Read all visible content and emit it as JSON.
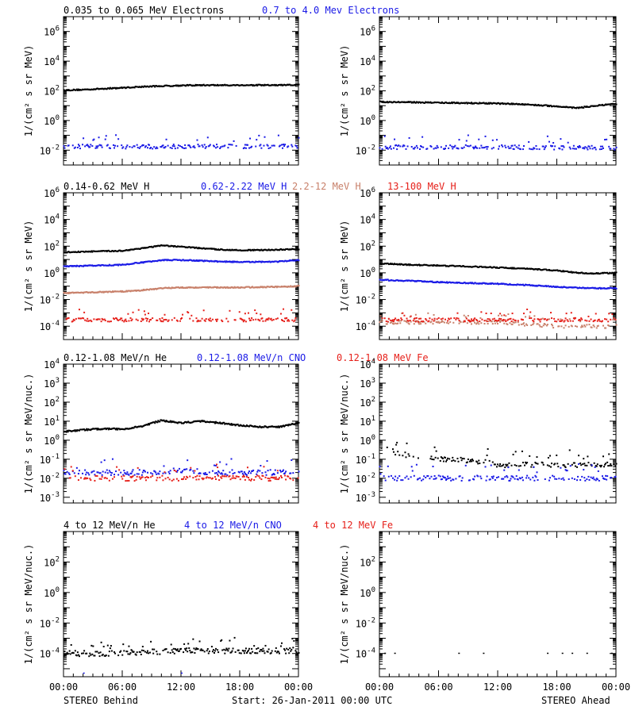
{
  "colors": {
    "black": "#000000",
    "blue": "#1a1ae6",
    "salmon": "#c8806a",
    "red": "#e6201a"
  },
  "footer": {
    "left": "STEREO Behind",
    "center": "Start: 26-Jan-2011 00:00 UTC",
    "right": "STEREO Ahead"
  },
  "x_ticks": [
    "00:00",
    "06:00",
    "12:00",
    "18:00",
    "00:00"
  ],
  "chart_data": [
    {
      "type": "scatter",
      "panel": "electrons-behind",
      "log_y": true,
      "xlim_hours": [
        0,
        24
      ],
      "ylim": [
        0.001,
        10000000
      ],
      "ylabel": "1/(cm² s sr MeV)",
      "y_ticks": [
        {
          "exp": -2,
          "label": "-2"
        },
        {
          "exp": 0,
          "label": "0"
        },
        {
          "exp": 2,
          "label": "2"
        },
        {
          "exp": 4,
          "label": "4"
        },
        {
          "exp": 6,
          "label": "6"
        }
      ],
      "series": [
        {
          "name": "0.035 to 0.065 MeV Electrons",
          "color": "black",
          "style": "dense",
          "x": [
            0,
            2,
            4,
            6,
            8,
            10,
            12,
            14,
            16,
            18,
            20,
            22,
            24
          ],
          "y": [
            110,
            120,
            140,
            160,
            190,
            210,
            230,
            240,
            240,
            240,
            240,
            240,
            250
          ]
        },
        {
          "name": "0.7 to 4.0 Mev Electrons",
          "color": "blue",
          "style": "scatter",
          "x": [
            0,
            4,
            8,
            12,
            16,
            20,
            24
          ],
          "y": [
            0.018,
            0.018,
            0.017,
            0.018,
            0.018,
            0.018,
            0.018
          ]
        }
      ]
    },
    {
      "type": "scatter",
      "panel": "electrons-ahead",
      "log_y": true,
      "xlim_hours": [
        0,
        24
      ],
      "ylim": [
        0.001,
        10000000
      ],
      "ylabel": "1/(cm² s sr MeV)",
      "y_ticks": [
        {
          "exp": -2,
          "label": "-2"
        },
        {
          "exp": 0,
          "label": "0"
        },
        {
          "exp": 2,
          "label": "2"
        },
        {
          "exp": 4,
          "label": "4"
        },
        {
          "exp": 6,
          "label": "6"
        }
      ],
      "series": [
        {
          "name": "",
          "color": "black",
          "style": "dense",
          "x": [
            0,
            3,
            6,
            9,
            12,
            15,
            18,
            20,
            22,
            24
          ],
          "y": [
            18,
            17,
            16,
            15,
            14,
            12,
            9,
            7,
            10,
            13
          ]
        },
        {
          "name": "",
          "color": "blue",
          "style": "scatter",
          "x": [
            0,
            6,
            12,
            18,
            24
          ],
          "y": [
            0.016,
            0.016,
            0.016,
            0.015,
            0.014
          ]
        }
      ]
    },
    {
      "type": "scatter",
      "panel": "protons-behind",
      "log_y": true,
      "xlim_hours": [
        0,
        24
      ],
      "ylim": [
        1e-05,
        1000000
      ],
      "ylabel": "1/(cm² s sr MeV)",
      "y_ticks": [
        {
          "exp": -4,
          "label": "-4"
        },
        {
          "exp": -2,
          "label": "-2"
        },
        {
          "exp": 0,
          "label": "0"
        },
        {
          "exp": 2,
          "label": "2"
        },
        {
          "exp": 4,
          "label": "4"
        },
        {
          "exp": 6,
          "label": "6"
        }
      ],
      "series": [
        {
          "name": "0.14-0.62 MeV H",
          "color": "black",
          "style": "dense",
          "x": [
            0,
            3,
            6,
            8,
            10,
            12,
            14,
            16,
            18,
            20,
            22,
            24
          ],
          "y": [
            35,
            40,
            45,
            70,
            110,
            90,
            70,
            55,
            50,
            50,
            55,
            60
          ]
        },
        {
          "name": "0.62-2.22 MeV H",
          "color": "blue",
          "style": "dense",
          "x": [
            0,
            3,
            6,
            8,
            10,
            12,
            14,
            16,
            18,
            20,
            22,
            24
          ],
          "y": [
            3,
            3.5,
            4,
            6,
            9,
            9,
            8,
            7,
            6.5,
            6.5,
            7,
            9
          ]
        },
        {
          "name": "2.2-12 MeV H",
          "color": "salmon",
          "style": "dense",
          "x": [
            0,
            3,
            6,
            8,
            10,
            12,
            14,
            16,
            18,
            20,
            22,
            24
          ],
          "y": [
            0.03,
            0.035,
            0.04,
            0.05,
            0.07,
            0.08,
            0.08,
            0.08,
            0.08,
            0.085,
            0.09,
            0.1
          ]
        },
        {
          "name": "13-100 MeV H",
          "color": "red",
          "style": "scatter",
          "x": [
            0,
            6,
            12,
            18,
            24
          ],
          "y": [
            0.0003,
            0.0003,
            0.0003,
            0.0003,
            0.0003
          ]
        }
      ]
    },
    {
      "type": "scatter",
      "panel": "protons-ahead",
      "log_y": true,
      "xlim_hours": [
        0,
        24
      ],
      "ylim": [
        1e-05,
        1000000
      ],
      "ylabel": "1/(cm² s sr MeV)",
      "y_ticks": [
        {
          "exp": -4,
          "label": "-4"
        },
        {
          "exp": -2,
          "label": "-2"
        },
        {
          "exp": 0,
          "label": "0"
        },
        {
          "exp": 2,
          "label": "2"
        },
        {
          "exp": 4,
          "label": "4"
        },
        {
          "exp": 6,
          "label": "6"
        }
      ],
      "series": [
        {
          "name": "",
          "color": "black",
          "style": "dense",
          "x": [
            0,
            3,
            6,
            9,
            12,
            15,
            18,
            20,
            22,
            24
          ],
          "y": [
            5,
            4,
            3.5,
            3,
            2.5,
            2,
            1.5,
            1,
            0.9,
            1
          ]
        },
        {
          "name": "",
          "color": "blue",
          "style": "dense",
          "x": [
            0,
            3,
            6,
            9,
            12,
            15,
            18,
            21,
            24
          ],
          "y": [
            0.3,
            0.25,
            0.2,
            0.17,
            0.15,
            0.12,
            0.09,
            0.07,
            0.07
          ]
        },
        {
          "name": "",
          "color": "salmon",
          "style": "scatter",
          "x": [
            0,
            6,
            12,
            18,
            24
          ],
          "y": [
            0.0002,
            0.0002,
            0.0002,
            0.0001,
            0.0001
          ]
        },
        {
          "name": "",
          "color": "red",
          "style": "scatter",
          "x": [
            0,
            6,
            12,
            18,
            24
          ],
          "y": [
            0.0003,
            0.0003,
            0.0003,
            0.0003,
            0.0003
          ]
        }
      ]
    },
    {
      "type": "scatter",
      "panel": "ions-low-behind",
      "log_y": true,
      "xlim_hours": [
        0,
        24
      ],
      "ylim": [
        0.0005,
        10000
      ],
      "ylabel": "1/(cm² s sr MeV/nuc.)",
      "y_ticks": [
        {
          "exp": -3,
          "label": "-3"
        },
        {
          "exp": -2,
          "label": "-2"
        },
        {
          "exp": -1,
          "label": "-1"
        },
        {
          "exp": 0,
          "label": "0"
        },
        {
          "exp": 1,
          "label": "1"
        },
        {
          "exp": 2,
          "label": "2"
        },
        {
          "exp": 3,
          "label": "3"
        },
        {
          "exp": 4,
          "label": "4"
        }
      ],
      "series": [
        {
          "name": "0.12-1.08 MeV/n He",
          "color": "black",
          "style": "dense",
          "x": [
            0,
            2,
            4,
            6,
            8,
            10,
            12,
            14,
            16,
            18,
            20,
            22,
            24
          ],
          "y": [
            2.8,
            3.5,
            4,
            3.8,
            5.5,
            11,
            8,
            10,
            8,
            6,
            5,
            5,
            8
          ]
        },
        {
          "name": "0.12-1.08 MeV/n CNO",
          "color": "blue",
          "style": "scatter",
          "x": [
            0,
            4,
            8,
            12,
            16,
            20,
            24
          ],
          "y": [
            0.02,
            0.02,
            0.02,
            0.025,
            0.02,
            0.02,
            0.02
          ]
        },
        {
          "name": "0.12-1.08 MeV Fe",
          "color": "red",
          "style": "scatter",
          "x": [
            0,
            6,
            12,
            18,
            24
          ],
          "y": [
            0.01,
            0.01,
            0.01,
            0.01,
            0.01
          ]
        }
      ]
    },
    {
      "type": "scatter",
      "panel": "ions-low-ahead",
      "log_y": true,
      "xlim_hours": [
        0,
        24
      ],
      "ylim": [
        0.0005,
        10000
      ],
      "ylabel": "1/(cm² s sr MeV/nuc.)",
      "y_ticks": [
        {
          "exp": -3,
          "label": "-3"
        },
        {
          "exp": -2,
          "label": "-2"
        },
        {
          "exp": -1,
          "label": "-1"
        },
        {
          "exp": 0,
          "label": "0"
        },
        {
          "exp": 1,
          "label": "1"
        },
        {
          "exp": 2,
          "label": "2"
        },
        {
          "exp": 3,
          "label": "3"
        },
        {
          "exp": 4,
          "label": "4"
        }
      ],
      "series": [
        {
          "name": "",
          "color": "black",
          "style": "scatter",
          "x": [
            0,
            1,
            2,
            3,
            4,
            6,
            8,
            10,
            12,
            16,
            20,
            24
          ],
          "y": [
            0.4,
            0.3,
            0.2,
            0.15,
            0.15,
            0.1,
            0.1,
            0.08,
            0.05,
            0.05,
            0.05,
            0.05
          ]
        },
        {
          "name": "",
          "color": "blue",
          "style": "scatter",
          "x": [
            0,
            6,
            12,
            18,
            24
          ],
          "y": [
            0.01,
            0.01,
            0.01,
            0.01,
            0.01
          ]
        }
      ]
    },
    {
      "type": "scatter",
      "panel": "ions-high-behind",
      "log_y": true,
      "xlim_hours": [
        0,
        24
      ],
      "ylim": [
        3e-06,
        10000
      ],
      "ylabel": "1/(cm² s sr MeV/nuc.)",
      "y_ticks": [
        {
          "exp": -4,
          "label": "-4"
        },
        {
          "exp": -2,
          "label": "-2"
        },
        {
          "exp": 0,
          "label": "0"
        },
        {
          "exp": 2,
          "label": "2"
        }
      ],
      "series": [
        {
          "name": "4 to 12 MeV/n He",
          "color": "black",
          "style": "sparse",
          "x": [
            0,
            4,
            8,
            12,
            16,
            20,
            24
          ],
          "y": [
            0.0001,
            0.0001,
            0.00012,
            0.00015,
            0.00015,
            0.00015,
            0.00015
          ]
        },
        {
          "name": "4 to 12 MeV/n CNO",
          "color": "blue",
          "style": "rare",
          "x": [
            2,
            12
          ],
          "y": [
            5e-06,
            5e-06
          ]
        },
        {
          "name": "4 to 12 MeV Fe",
          "color": "red",
          "style": "none",
          "x": [],
          "y": []
        }
      ]
    },
    {
      "type": "scatter",
      "panel": "ions-high-ahead",
      "log_y": true,
      "xlim_hours": [
        0,
        24
      ],
      "ylim": [
        3e-06,
        10000
      ],
      "ylabel": "1/(cm² s sr MeV/nuc.)",
      "y_ticks": [
        {
          "exp": -4,
          "label": "-4"
        },
        {
          "exp": -2,
          "label": "-2"
        },
        {
          "exp": 0,
          "label": "0"
        },
        {
          "exp": 2,
          "label": "2"
        }
      ],
      "series": [
        {
          "name": "",
          "color": "black",
          "style": "rare",
          "x": [
            0.5,
            1.5,
            8,
            10.5,
            17,
            18.5,
            19.5,
            21,
            23.5
          ],
          "y": [
            0.0001,
            0.0001,
            0.0001,
            0.0001,
            0.0001,
            0.0001,
            0.0001,
            0.0001,
            0.0001
          ]
        }
      ]
    }
  ]
}
